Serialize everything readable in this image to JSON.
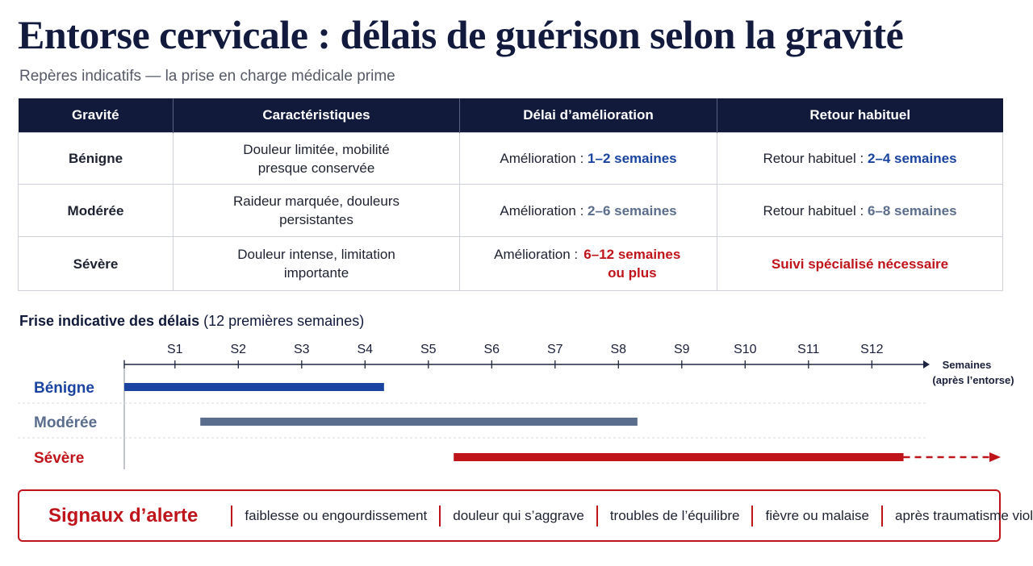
{
  "title": "Entorse cervicale : délais de guérison selon la gravité",
  "subtitle": "Repères indicatifs — la prise en charge médicale prime",
  "table": {
    "headers": [
      "Gravité",
      "Caractéristiques",
      "Délai d’amélioration",
      "Retour habituel"
    ],
    "rows": [
      {
        "gravite": "Bénigne",
        "carac": "Douleur limitée, mobilité presque conservée",
        "amelioration_prefix": "Amélioration :",
        "amelioration_value": "1–2 semaines",
        "retour_prefix": "Retour habituel :",
        "retour_value": "2–4 semaines",
        "color": "#1a44a0"
      },
      {
        "gravite": "Modérée",
        "carac": "Raideur marquée, douleurs persistantes",
        "amelioration_prefix": "Amélioration :",
        "amelioration_value": "2–6 semaines",
        "retour_prefix": "Retour habituel :",
        "retour_value": "6–8 semaines",
        "color": "#5b6d8c"
      },
      {
        "gravite": "Sévère",
        "carac": "Douleur intense, limitation importante",
        "amelioration_prefix": "Amélioration :",
        "amelioration_value": "6–12 semaines ou plus",
        "retour_prefix": "",
        "retour_value": "Suivi spécialisé nécessaire",
        "color": "#c0141b"
      }
    ]
  },
  "timeline": {
    "title_bold": "Frise indicative des délais",
    "title_rest": "(12 premières semaines)",
    "ticks": [
      "S1",
      "S2",
      "S3",
      "S4",
      "S5",
      "S6",
      "S7",
      "S8",
      "S9",
      "S10",
      "S11",
      "S12"
    ],
    "axis_label_line1": "Semaines",
    "axis_label_line2": "(après l’entorse)",
    "rows": [
      {
        "label": "Bénigne",
        "start": 0,
        "end": 4.1,
        "color": "#1a44a0",
        "extends": false
      },
      {
        "label": "Modérée",
        "start": 1.2,
        "end": 8.1,
        "color": "#5b6d8c",
        "extends": false
      },
      {
        "label": "Sévère",
        "start": 5.2,
        "end": 12.3,
        "color": "#c0141b",
        "extends": true
      }
    ]
  },
  "alert": {
    "title": "Signaux d’alerte",
    "items": [
      "faiblesse ou engourdissement",
      "douleur qui s’aggrave",
      "troubles de l’équilibre",
      "fièvre ou malaise",
      "après traumatisme violent"
    ]
  }
}
